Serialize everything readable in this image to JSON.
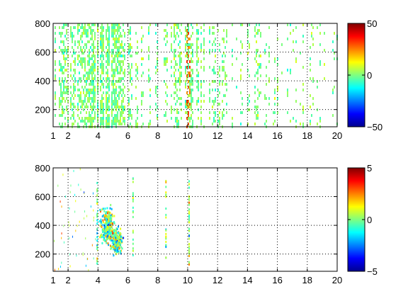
{
  "chart_data": [
    {
      "type": "heatmap",
      "title": "",
      "xlabel": "",
      "ylabel": "",
      "xlim": [
        1,
        20
      ],
      "ylim": [
        80,
        800
      ],
      "xticks": [
        1,
        2,
        4,
        6,
        8,
        10,
        12,
        14,
        16,
        18,
        20
      ],
      "xtick_labels": [
        "1",
        "2",
        "4",
        "6",
        "8",
        "10",
        "12",
        "14",
        "16",
        "18",
        "20"
      ],
      "yticks": [
        200,
        400,
        600,
        800
      ],
      "ytick_labels": [
        "200",
        "400",
        "600",
        "800"
      ],
      "grid": true,
      "colormap": "jet",
      "clim": [
        -50,
        50
      ],
      "colorbar_ticks": [
        -50,
        0,
        50
      ],
      "colorbar_labels": [
        "−50",
        "0",
        "50"
      ],
      "density_profile": [
        {
          "x": 1,
          "density": 0.55
        },
        {
          "x": 2,
          "density": 0.5
        },
        {
          "x": 2.6,
          "density": 0.6
        },
        {
          "x": 3,
          "density": 0.55
        },
        {
          "x": 4,
          "density": 0.9
        },
        {
          "x": 5,
          "density": 0.85
        },
        {
          "x": 6,
          "density": 0.5
        },
        {
          "x": 7,
          "density": 0.3
        },
        {
          "x": 8.5,
          "density": 0.3
        },
        {
          "x": 10,
          "density": 0.6
        },
        {
          "x": 11.5,
          "density": 0.4
        },
        {
          "x": 13,
          "density": 0.2
        },
        {
          "x": 14.5,
          "density": 0.3
        },
        {
          "x": 16,
          "density": 0.15
        },
        {
          "x": 18,
          "density": 0.2
        },
        {
          "x": 20,
          "density": 0.1
        }
      ]
    },
    {
      "type": "heatmap",
      "title": "",
      "xlabel": "",
      "ylabel": "",
      "xlim": [
        1,
        20
      ],
      "ylim": [
        80,
        800
      ],
      "xticks": [
        1,
        2,
        4,
        6,
        8,
        10,
        12,
        14,
        16,
        18,
        20
      ],
      "xtick_labels": [
        "1",
        "2",
        "4",
        "6",
        "8",
        "10",
        "12",
        "14",
        "16",
        "18",
        "20"
      ],
      "yticks": [
        200,
        400,
        600,
        800
      ],
      "ytick_labels": [
        "200",
        "400",
        "600",
        "800"
      ],
      "grid": true,
      "colormap": "jet",
      "clim": [
        -5,
        5
      ],
      "colorbar_ticks": [
        -5,
        0,
        5
      ],
      "colorbar_labels": [
        "−5",
        "0",
        "5"
      ],
      "clusters": [
        {
          "x": 4.6,
          "y": 400,
          "spread_x": 0.6,
          "spread_y": 180
        },
        {
          "x": 5.2,
          "y": 300,
          "spread_x": 0.5,
          "spread_y": 120
        }
      ],
      "columns": [
        {
          "x": 10.05,
          "y_range": [
            120,
            720
          ]
        },
        {
          "x": 6.3,
          "y_range": [
            170,
            740
          ]
        },
        {
          "x": 8.5,
          "y_range": [
            150,
            720
          ]
        },
        {
          "x": 3.9,
          "y_range": [
            140,
            720
          ]
        }
      ]
    }
  ]
}
